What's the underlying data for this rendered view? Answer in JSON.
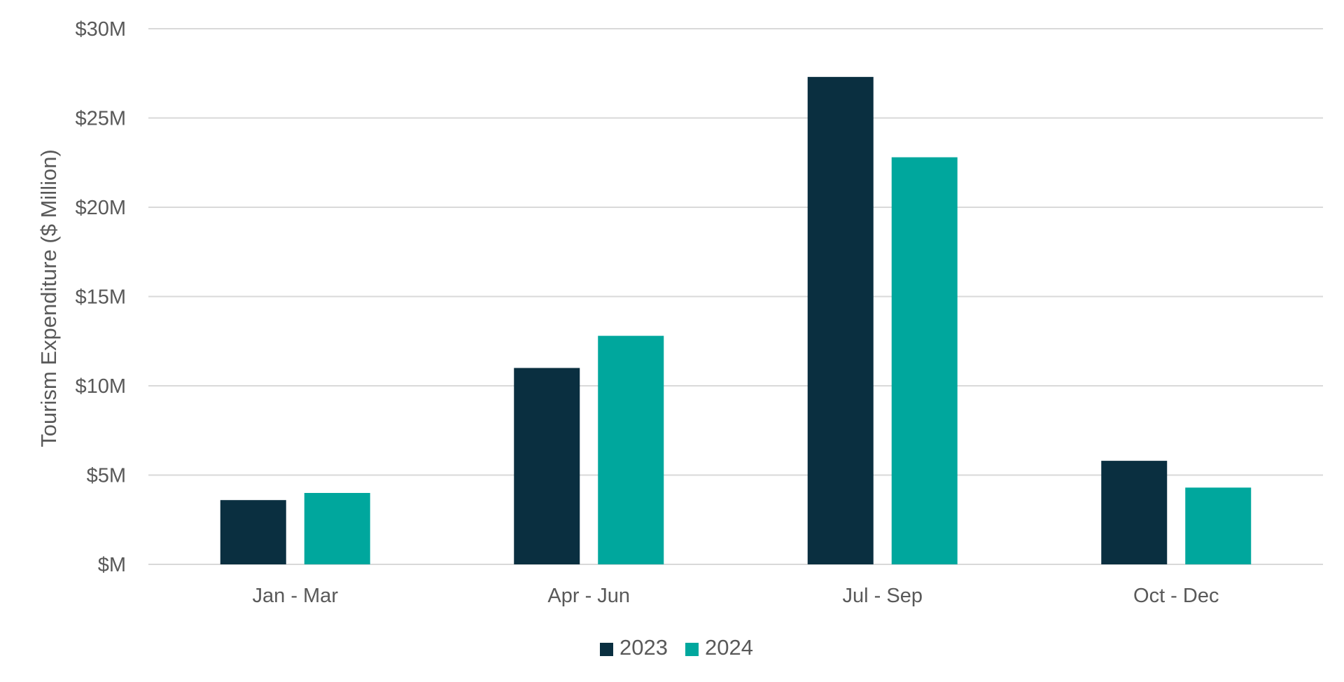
{
  "chart_data": {
    "type": "bar",
    "title": "",
    "xlabel": "",
    "ylabel": "Tourism Expenditure ($ Million)",
    "categories": [
      "Jan - Mar",
      "Apr - Jun",
      "Jul - Sep",
      "Oct - Dec"
    ],
    "series": [
      {
        "name": "2023",
        "color": "#0a2f40",
        "values": [
          3.6,
          11.0,
          27.3,
          5.8
        ]
      },
      {
        "name": "2024",
        "color": "#00a79d",
        "values": [
          4.0,
          12.8,
          22.8,
          4.3
        ]
      }
    ],
    "ylim": [
      0,
      30
    ],
    "yticks": [
      {
        "value": 0,
        "label": "$M"
      },
      {
        "value": 5,
        "label": "$5M"
      },
      {
        "value": 10,
        "label": "$10M"
      },
      {
        "value": 15,
        "label": "$15M"
      },
      {
        "value": 20,
        "label": "$20M"
      },
      {
        "value": 25,
        "label": "$25M"
      },
      {
        "value": 30,
        "label": "$30M"
      }
    ],
    "grid": true,
    "legend": "bottom"
  }
}
